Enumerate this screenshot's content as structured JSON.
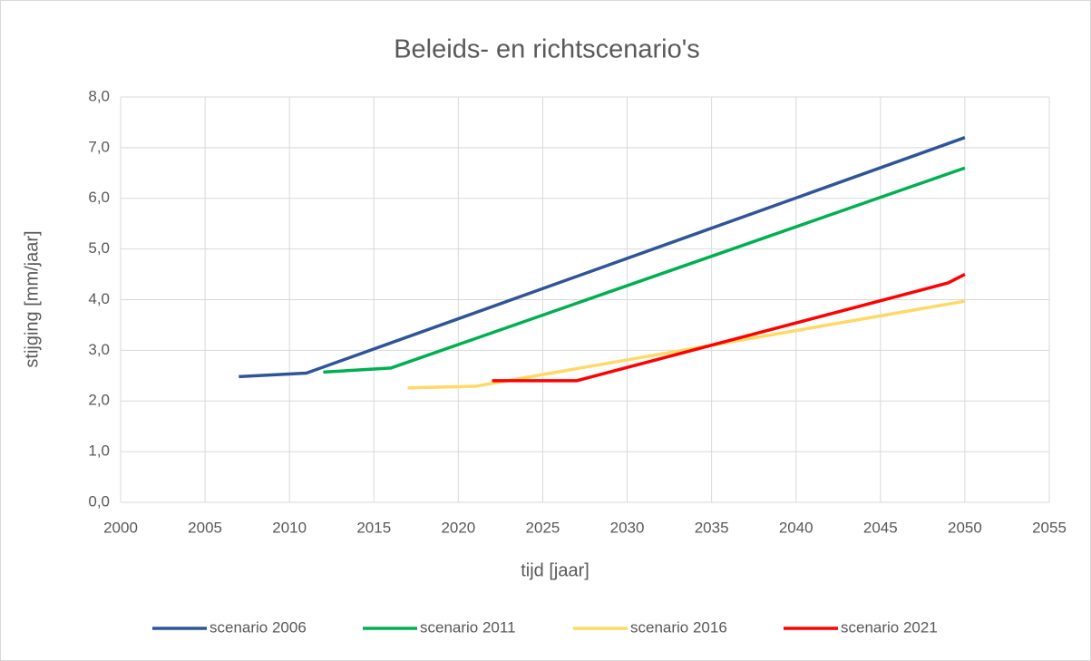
{
  "chart_data": {
    "type": "line",
    "title": "Beleids- en richtscenario's",
    "x_label": "tijd [jaar]",
    "y_label": "stijging [mm/jaar]",
    "xlim": [
      2000,
      2055
    ],
    "xticks": [
      2000,
      2005,
      2010,
      2015,
      2020,
      2025,
      2030,
      2035,
      2040,
      2045,
      2050,
      2055
    ],
    "ylim": [
      0,
      8
    ],
    "yticks": [
      {
        "value": 0,
        "label": "0,0"
      },
      {
        "value": 1,
        "label": "1,0"
      },
      {
        "value": 2,
        "label": "2,0"
      },
      {
        "value": 3,
        "label": "3,0"
      },
      {
        "value": 4,
        "label": "4,0"
      },
      {
        "value": 5,
        "label": "5,0"
      },
      {
        "value": 6,
        "label": "6,0"
      },
      {
        "value": 7,
        "label": "7,0"
      },
      {
        "value": 8,
        "label": "8,0"
      }
    ],
    "grid": true,
    "legend": "bottom",
    "series": [
      {
        "name": "scenario 2006",
        "color": "#2f5597",
        "x": [
          2007,
          2011,
          2050
        ],
        "values": [
          2.48,
          2.55,
          7.2
        ]
      },
      {
        "name": "scenario 2011",
        "color": "#00b050",
        "x": [
          2012,
          2016,
          2050
        ],
        "values": [
          2.57,
          2.65,
          6.6
        ]
      },
      {
        "name": "scenario 2016",
        "color": "#ffd966",
        "x": [
          2017,
          2021,
          2050
        ],
        "values": [
          2.26,
          2.29,
          3.97
        ]
      },
      {
        "name": "scenario 2021",
        "color": "#ff0000",
        "x": [
          2022,
          2027,
          2049,
          2050
        ],
        "values": [
          2.4,
          2.4,
          4.33,
          4.5
        ]
      }
    ]
  }
}
